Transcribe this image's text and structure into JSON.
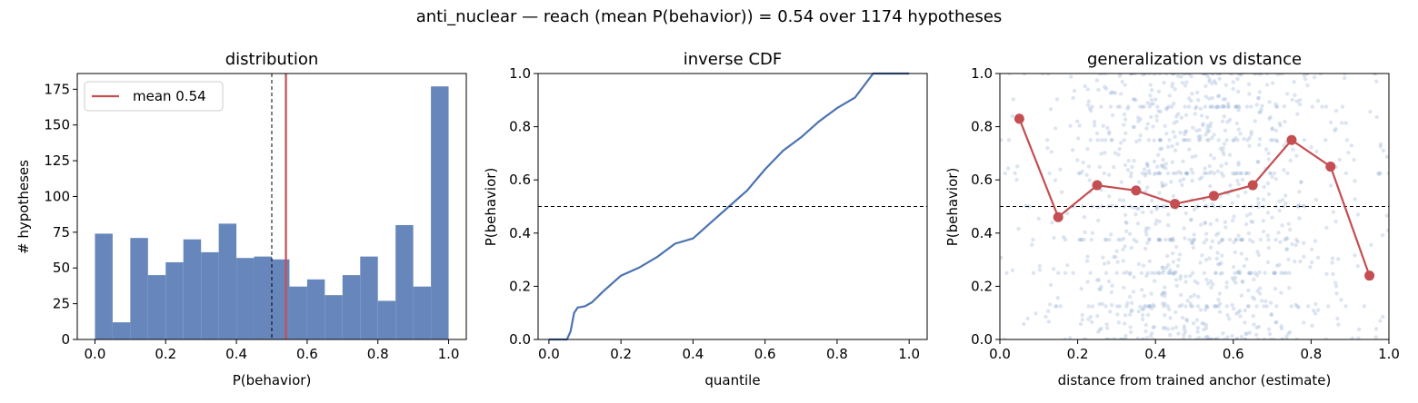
{
  "suptitle": "anti_nuclear  —  reach (mean P(behavior)) = 0.54  over 1174 hypotheses",
  "colors": {
    "bar": "#6787BC",
    "curve": "#4C72B0",
    "accent": "#C44E52",
    "scatter": "#9FB4D6",
    "axis": "#000000"
  },
  "chart_data": [
    {
      "type": "bar",
      "title": "distribution",
      "xlabel": "P(behavior)",
      "ylabel": "# hypotheses",
      "xlim": [
        -0.05,
        1.05
      ],
      "ylim": [
        0,
        186
      ],
      "xticks": [
        "0.0",
        "0.2",
        "0.4",
        "0.6",
        "0.8",
        "1.0"
      ],
      "yticks": [
        "0",
        "25",
        "50",
        "75",
        "100",
        "125",
        "150",
        "175"
      ],
      "bin_edges": [
        0.0,
        0.05,
        0.1,
        0.15,
        0.2,
        0.25,
        0.3,
        0.35,
        0.4,
        0.45,
        0.5,
        0.55,
        0.6,
        0.65,
        0.7,
        0.75,
        0.8,
        0.85,
        0.9,
        0.95,
        1.0
      ],
      "values": [
        74,
        12,
        71,
        45,
        54,
        70,
        61,
        81,
        57,
        58,
        56,
        37,
        42,
        31,
        45,
        58,
        27,
        80,
        37,
        177
      ],
      "mean": 0.54,
      "threshold": 0.5,
      "legend": {
        "label": "mean 0.54",
        "position": "upper left"
      }
    },
    {
      "type": "line",
      "title": "inverse CDF",
      "xlabel": "quantile",
      "ylabel": "P(behavior)",
      "xlim": [
        -0.03,
        1.05
      ],
      "ylim": [
        0,
        1
      ],
      "xticks": [
        "0.0",
        "0.2",
        "0.4",
        "0.6",
        "0.8",
        "1.0"
      ],
      "yticks": [
        "0.0",
        "0.2",
        "0.4",
        "0.6",
        "0.8",
        "1.0"
      ],
      "threshold": 0.5,
      "points": [
        [
          0.0,
          0.0
        ],
        [
          0.05,
          0.0
        ],
        [
          0.06,
          0.03
        ],
        [
          0.07,
          0.1
        ],
        [
          0.08,
          0.12
        ],
        [
          0.1,
          0.125
        ],
        [
          0.12,
          0.14
        ],
        [
          0.15,
          0.18
        ],
        [
          0.2,
          0.24
        ],
        [
          0.25,
          0.27
        ],
        [
          0.3,
          0.31
        ],
        [
          0.35,
          0.36
        ],
        [
          0.4,
          0.38
        ],
        [
          0.45,
          0.44
        ],
        [
          0.5,
          0.5
        ],
        [
          0.55,
          0.56
        ],
        [
          0.6,
          0.64
        ],
        [
          0.65,
          0.71
        ],
        [
          0.7,
          0.76
        ],
        [
          0.75,
          0.82
        ],
        [
          0.8,
          0.87
        ],
        [
          0.85,
          0.91
        ],
        [
          0.9,
          1.0
        ],
        [
          1.0,
          1.0
        ]
      ]
    },
    {
      "type": "scatter",
      "title": "generalization vs distance",
      "xlabel": "distance from trained anchor (estimate)",
      "ylabel": "P(behavior)",
      "xlim": [
        0,
        1
      ],
      "ylim": [
        0,
        1
      ],
      "xticks": [
        "0.0",
        "0.2",
        "0.4",
        "0.6",
        "0.8",
        "1.0"
      ],
      "yticks": [
        "0.0",
        "0.2",
        "0.4",
        "0.6",
        "0.8",
        "1.0"
      ],
      "threshold": 0.5,
      "binned_means": {
        "x": [
          0.05,
          0.15,
          0.25,
          0.35,
          0.45,
          0.55,
          0.65,
          0.75,
          0.85,
          0.95
        ],
        "y": [
          0.83,
          0.46,
          0.58,
          0.56,
          0.51,
          0.54,
          0.58,
          0.75,
          0.65,
          0.24
        ]
      },
      "n_points": 1174
    }
  ]
}
